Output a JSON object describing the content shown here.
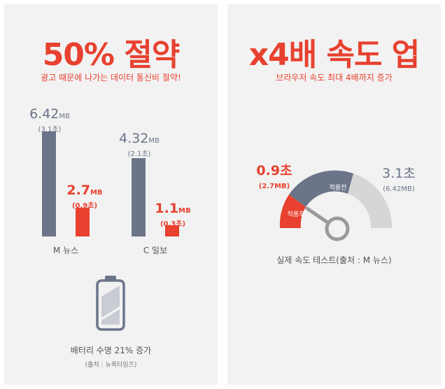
{
  "left": {
    "headline": "50% 절약",
    "subtitle": "광고 때문에 나가는 데이터 통신비 절약!",
    "chart": {
      "group1": {
        "gray_value": "6.42",
        "gray_unit": "MB",
        "gray_sub": "(3.1초)",
        "red_value": "2.7",
        "red_unit": "MB",
        "red_sub": "(0.9초)",
        "category": "M 뉴스"
      },
      "group2": {
        "gray_value": "4.32",
        "gray_unit": "MB",
        "gray_sub": "(2.1초)",
        "red_value": "1.1",
        "red_unit": "MB",
        "red_sub": "(0.3초)",
        "category": "C 일보"
      }
    },
    "battery_caption": "배터리 수명 21% 증가",
    "battery_source": "(출처 : 뉴욕타임즈)"
  },
  "right": {
    "headline": "x4배 속도 업",
    "subtitle": "브라우저 속도 최대 4배까지 증가",
    "gauge": {
      "left_value": "0.9초",
      "left_sub": "(2.7MB)",
      "right_value": "3.1초",
      "right_sub": "(6.42MB)",
      "after_label": "적용후",
      "before_label": "적용전"
    },
    "caption": "실제 속도 테스트(출처 : M 뉴스)"
  },
  "colors": {
    "accent": "#e8412f",
    "gray_bar": "#6b7489",
    "light_gray": "#d6d6d6",
    "panel_bg": "#f2f2f2"
  }
}
